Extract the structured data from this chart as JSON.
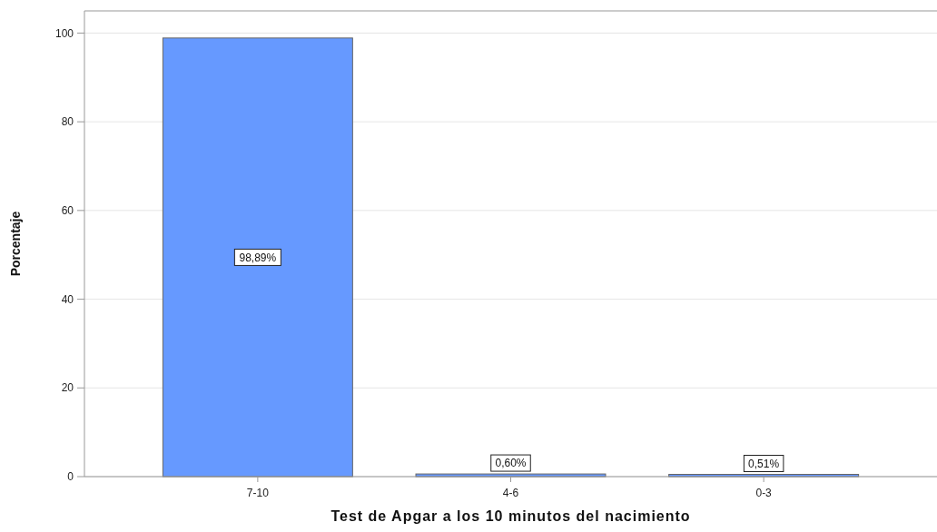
{
  "chart_data": {
    "type": "bar",
    "xlabel": "Test de Apgar a los 10 minutos del nacimiento",
    "ylabel": "Porcentaje",
    "categories": [
      "7-10",
      "4-6",
      "0-3"
    ],
    "values": [
      98.89,
      0.6,
      0.51
    ],
    "value_labels": [
      "98,89%",
      "0,60%",
      "0,51%"
    ],
    "color": "#6699ff",
    "ylim": [
      0,
      105
    ],
    "yticks": [
      0,
      20,
      40,
      60,
      80,
      100
    ],
    "grid": "y"
  }
}
